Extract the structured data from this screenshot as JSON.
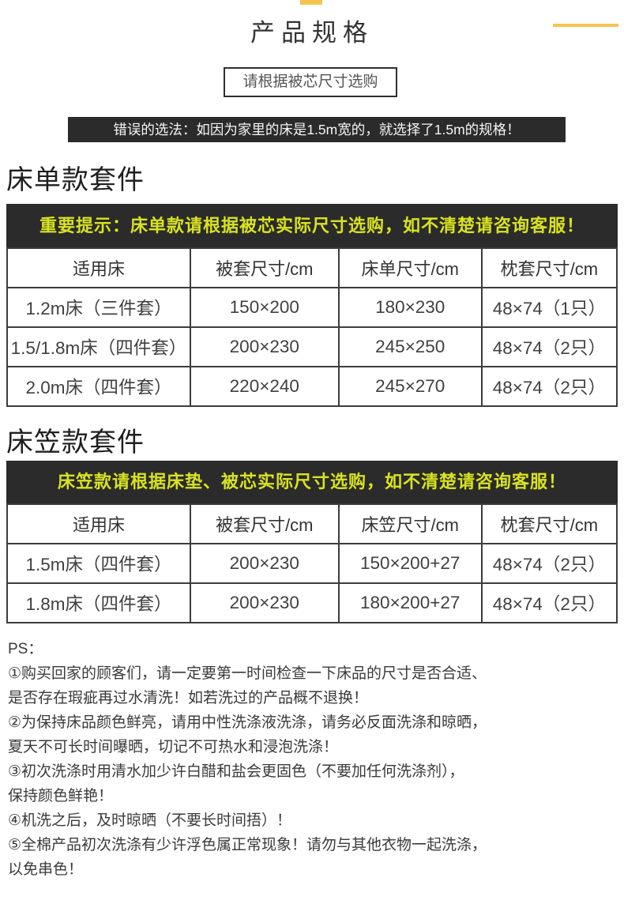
{
  "page": {
    "title": "产品规格",
    "subtitle_box": "请根据被芯尺寸选购",
    "warning_banner": "错误的选法：如因为家里的床是1.5m宽的，就选择了1.5m的规格！"
  },
  "colors": {
    "accent_gold": "#f6c44e",
    "notice_bg": "#2b2b2b",
    "notice_text_yellow": "#d9e31f",
    "highlight_red": "#ea2121"
  },
  "sheet_section": {
    "heading": "床单款套件",
    "notice": "重要提示：床单款请根据被芯实际尺寸选购，如不清楚请咨询客服！",
    "table": {
      "headers": [
        "适用床",
        "被套尺寸/cm",
        "床单尺寸/cm",
        "枕套尺寸/cm"
      ],
      "rows": [
        {
          "cells": [
            "1.2m床（三件套）",
            "150×200",
            "180×230",
            "48×74（1只）"
          ]
        },
        {
          "cells": [
            "1.5/1.8m床（四件套）",
            "200×230",
            "245×250",
            "48×74（2只）"
          ]
        },
        {
          "cells": [
            "2.0m床（四件套）",
            "220×240",
            "245×270",
            "48×74（2只）"
          ]
        }
      ]
    }
  },
  "fitted_section": {
    "heading": "床笠款套件",
    "notice": "床笠款请根据床垫、被芯实际尺寸选购，如不清楚请咨询客服！",
    "table": {
      "headers": [
        "适用床",
        "被套尺寸/cm",
        "床笠尺寸/cm",
        "枕套尺寸/cm"
      ],
      "rows": [
        {
          "cells": [
            "1.5m床（四件套）",
            "200×230",
            "150×200+27",
            "48×74（2只）"
          ]
        },
        {
          "cells": [
            "1.8m床（四件套）",
            "200×230",
            "180×200+27",
            "48×74（2只）"
          ]
        }
      ]
    }
  },
  "ps": {
    "label": "PS：",
    "lines": [
      "①购买回家的顾客们，请一定要第一时间检查一下床品的尺寸是否合适、",
      "是否存在瑕疵再过水清洗！如若洗过的产品概不退换！",
      "②为保持床品颜色鲜亮，请用中性洗涤液洗涤，请务必反面洗涤和晾晒，",
      "夏天不可长时间曝晒，切记不可热水和浸泡洗涤！",
      "③初次洗涤时用清水加少许白醋和盐会更固色（不要加任何洗涤剂），",
      "保持颜色鲜艳！",
      "④机洗之后，及时晾晒（不要长时间捂）！",
      "⑤全棉产品初次洗涤有少许浮色属正常现象！请勿与其他衣物一起洗涤，",
      "以免串色！"
    ]
  }
}
